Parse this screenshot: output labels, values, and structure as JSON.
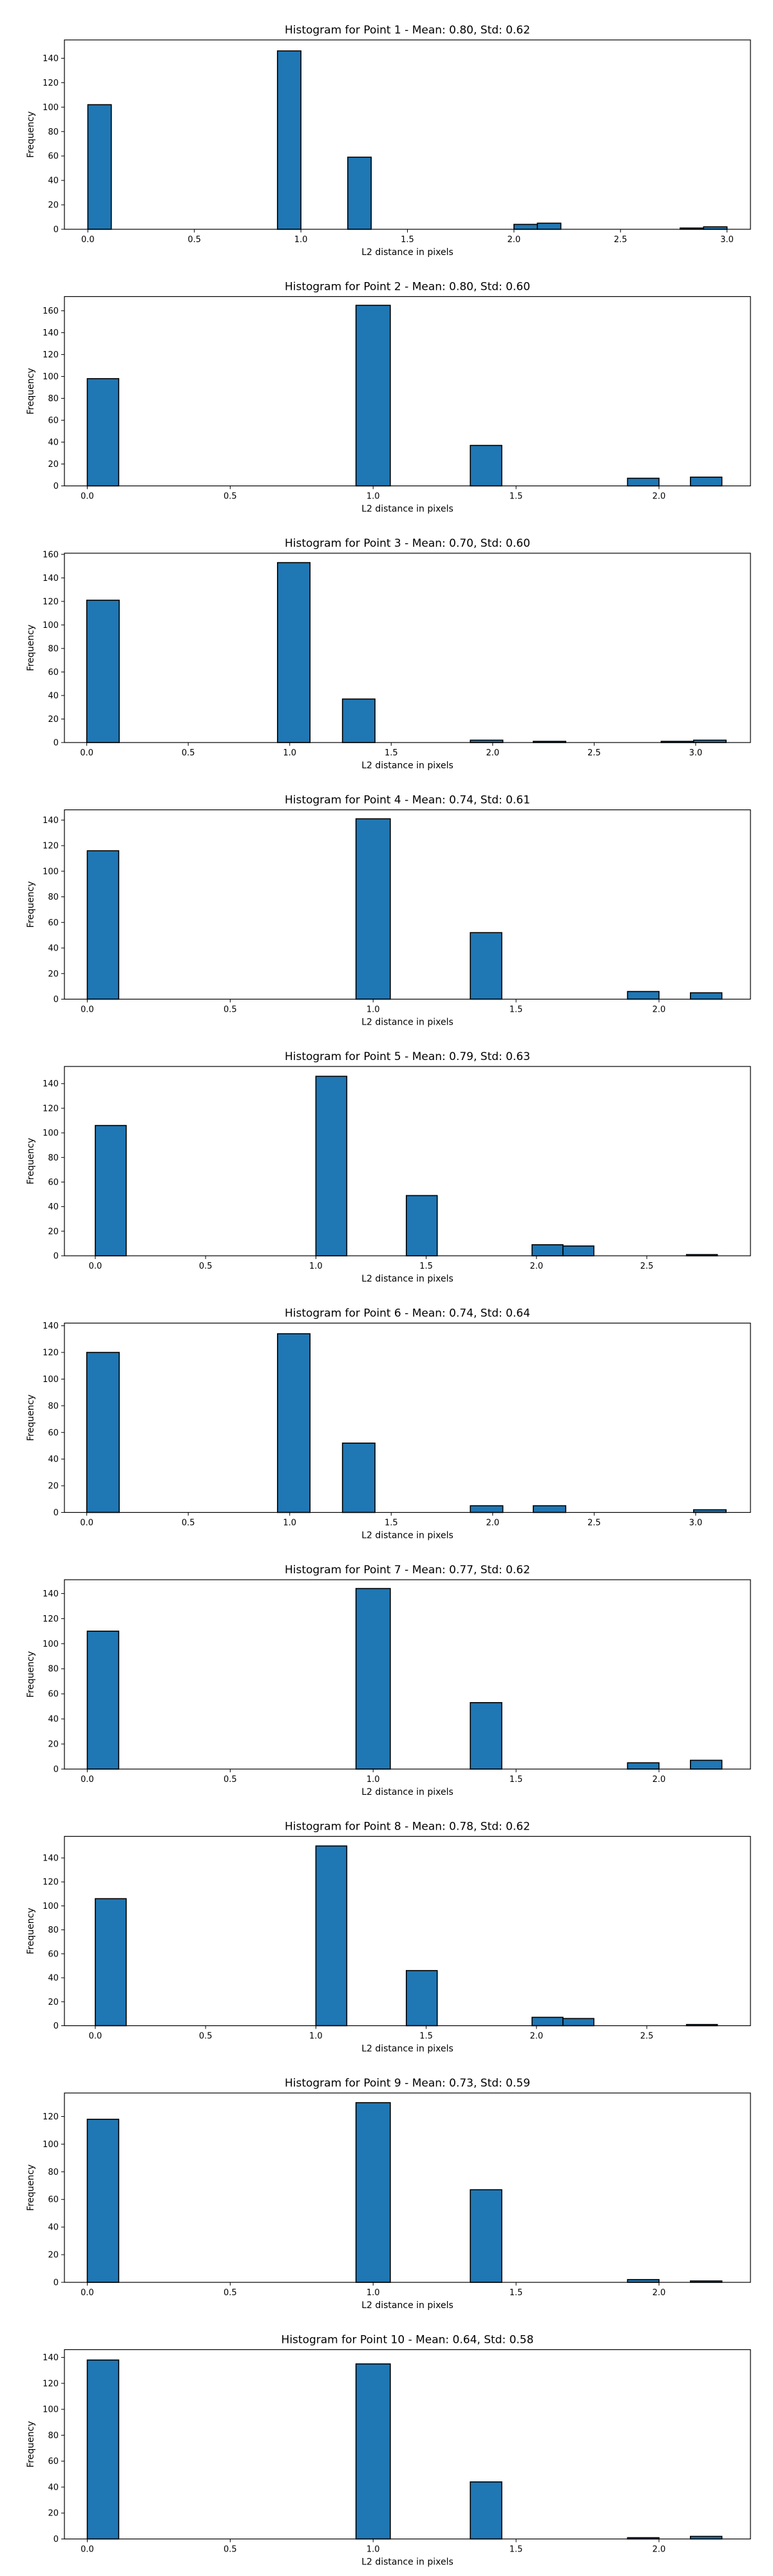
{
  "style": {
    "bar_color": "#1f77b4",
    "edge_color": "#000000"
  },
  "chart_data": [
    {
      "type": "bar",
      "title": "Histogram for Point 1 - Mean: 0.80, Std: 0.62",
      "xlabel": "L2 distance in pixels",
      "ylabel": "Frequency",
      "xlim": [
        -0.11,
        3.11
      ],
      "ylim": [
        0,
        155
      ],
      "xticks": [
        0.0,
        0.5,
        1.0,
        1.5,
        2.0,
        2.5,
        3.0
      ],
      "xtick_labels": [
        "0.0",
        "0.5",
        "1.0",
        "1.5",
        "2.0",
        "2.5",
        "3.0"
      ],
      "yticks": [
        0,
        20,
        40,
        60,
        80,
        100,
        120,
        140
      ],
      "bins": [
        {
          "x0": 0.0,
          "x1": 0.11,
          "value": 102
        },
        {
          "x0": 0.89,
          "x1": 1.0,
          "value": 146
        },
        {
          "x0": 1.22,
          "x1": 1.33,
          "value": 59
        },
        {
          "x0": 2.0,
          "x1": 2.11,
          "value": 4
        },
        {
          "x0": 2.11,
          "x1": 2.22,
          "value": 5
        },
        {
          "x0": 2.78,
          "x1": 2.89,
          "value": 1
        },
        {
          "x0": 2.89,
          "x1": 3.0,
          "value": 2
        }
      ]
    },
    {
      "type": "bar",
      "title": "Histogram for Point 2 - Mean: 0.80, Std: 0.60",
      "xlabel": "L2 distance in pixels",
      "ylabel": "Frequency",
      "xlim": [
        -0.08,
        2.32
      ],
      "ylim": [
        0,
        173
      ],
      "xticks": [
        0.0,
        0.5,
        1.0,
        1.5,
        2.0
      ],
      "xtick_labels": [
        "0.0",
        "0.5",
        "1.0",
        "1.5",
        "2.0"
      ],
      "yticks": [
        0,
        20,
        40,
        60,
        80,
        100,
        120,
        140,
        160
      ],
      "bins": [
        {
          "x0": 0.0,
          "x1": 0.11,
          "value": 98
        },
        {
          "x0": 0.94,
          "x1": 1.06,
          "value": 165
        },
        {
          "x0": 1.34,
          "x1": 1.45,
          "value": 37
        },
        {
          "x0": 1.89,
          "x1": 2.0,
          "value": 7
        },
        {
          "x0": 2.11,
          "x1": 2.22,
          "value": 8
        }
      ]
    },
    {
      "type": "bar",
      "title": "Histogram for Point 3 - Mean: 0.70, Std: 0.60",
      "xlabel": "L2 distance in pixels",
      "ylabel": "Frequency",
      "xlim": [
        -0.11,
        3.27
      ],
      "ylim": [
        0,
        161
      ],
      "xticks": [
        0.0,
        0.5,
        1.0,
        1.5,
        2.0,
        2.5,
        3.0
      ],
      "xtick_labels": [
        "0.0",
        "0.5",
        "1.0",
        "1.5",
        "2.0",
        "2.5",
        "3.0"
      ],
      "yticks": [
        0,
        20,
        40,
        60,
        80,
        100,
        120,
        140,
        160
      ],
      "bins": [
        {
          "x0": 0.0,
          "x1": 0.16,
          "value": 121
        },
        {
          "x0": 0.94,
          "x1": 1.1,
          "value": 153
        },
        {
          "x0": 1.26,
          "x1": 1.42,
          "value": 37
        },
        {
          "x0": 1.89,
          "x1": 2.05,
          "value": 2
        },
        {
          "x0": 2.2,
          "x1": 2.36,
          "value": 1
        },
        {
          "x0": 2.83,
          "x1": 2.99,
          "value": 1
        },
        {
          "x0": 2.99,
          "x1": 3.15,
          "value": 2
        }
      ]
    },
    {
      "type": "bar",
      "title": "Histogram for Point 4 - Mean: 0.74, Std: 0.61",
      "xlabel": "L2 distance in pixels",
      "ylabel": "Frequency",
      "xlim": [
        -0.08,
        2.32
      ],
      "ylim": [
        0,
        148
      ],
      "xticks": [
        0.0,
        0.5,
        1.0,
        1.5,
        2.0
      ],
      "xtick_labels": [
        "0.0",
        "0.5",
        "1.0",
        "1.5",
        "2.0"
      ],
      "yticks": [
        0,
        20,
        40,
        60,
        80,
        100,
        120,
        140
      ],
      "bins": [
        {
          "x0": 0.0,
          "x1": 0.11,
          "value": 116
        },
        {
          "x0": 0.94,
          "x1": 1.06,
          "value": 141
        },
        {
          "x0": 1.34,
          "x1": 1.45,
          "value": 52
        },
        {
          "x0": 1.89,
          "x1": 2.0,
          "value": 6
        },
        {
          "x0": 2.11,
          "x1": 2.22,
          "value": 5
        }
      ]
    },
    {
      "type": "bar",
      "title": "Histogram for Point 5 - Mean: 0.79, Std: 0.63",
      "xlabel": "L2 distance in pixels",
      "ylabel": "Frequency",
      "xlim": [
        -0.14,
        2.97
      ],
      "ylim": [
        0,
        154
      ],
      "xticks": [
        0.0,
        0.5,
        1.0,
        1.5,
        2.0,
        2.5
      ],
      "xtick_labels": [
        "0.0",
        "0.5",
        "1.0",
        "1.5",
        "2.0",
        "2.5"
      ],
      "yticks": [
        0,
        20,
        40,
        60,
        80,
        100,
        120,
        140
      ],
      "bins": [
        {
          "x0": 0.0,
          "x1": 0.14,
          "value": 106
        },
        {
          "x0": 1.0,
          "x1": 1.14,
          "value": 146
        },
        {
          "x0": 1.41,
          "x1": 1.55,
          "value": 49
        },
        {
          "x0": 1.98,
          "x1": 2.12,
          "value": 9
        },
        {
          "x0": 2.12,
          "x1": 2.26,
          "value": 8
        },
        {
          "x0": 2.68,
          "x1": 2.82,
          "value": 1
        }
      ]
    },
    {
      "type": "bar",
      "title": "Histogram for Point 6 - Mean: 0.74, Std: 0.64",
      "xlabel": "L2 distance in pixels",
      "ylabel": "Frequency",
      "xlim": [
        -0.11,
        3.27
      ],
      "ylim": [
        0,
        142
      ],
      "xticks": [
        0.0,
        0.5,
        1.0,
        1.5,
        2.0,
        2.5,
        3.0
      ],
      "xtick_labels": [
        "0.0",
        "0.5",
        "1.0",
        "1.5",
        "2.0",
        "2.5",
        "3.0"
      ],
      "yticks": [
        0,
        20,
        40,
        60,
        80,
        100,
        120,
        140
      ],
      "bins": [
        {
          "x0": 0.0,
          "x1": 0.16,
          "value": 120
        },
        {
          "x0": 0.94,
          "x1": 1.1,
          "value": 134
        },
        {
          "x0": 1.26,
          "x1": 1.42,
          "value": 52
        },
        {
          "x0": 1.89,
          "x1": 2.05,
          "value": 5
        },
        {
          "x0": 2.2,
          "x1": 2.36,
          "value": 5
        },
        {
          "x0": 2.99,
          "x1": 3.15,
          "value": 2
        }
      ]
    },
    {
      "type": "bar",
      "title": "Histogram for Point 7 - Mean: 0.77, Std: 0.62",
      "xlabel": "L2 distance in pixels",
      "ylabel": "Frequency",
      "xlim": [
        -0.08,
        2.32
      ],
      "ylim": [
        0,
        151
      ],
      "xticks": [
        0.0,
        0.5,
        1.0,
        1.5,
        2.0
      ],
      "xtick_labels": [
        "0.0",
        "0.5",
        "1.0",
        "1.5",
        "2.0"
      ],
      "yticks": [
        0,
        20,
        40,
        60,
        80,
        100,
        120,
        140
      ],
      "bins": [
        {
          "x0": 0.0,
          "x1": 0.11,
          "value": 110
        },
        {
          "x0": 0.94,
          "x1": 1.06,
          "value": 144
        },
        {
          "x0": 1.34,
          "x1": 1.45,
          "value": 53
        },
        {
          "x0": 1.89,
          "x1": 2.0,
          "value": 5
        },
        {
          "x0": 2.11,
          "x1": 2.22,
          "value": 7
        }
      ]
    },
    {
      "type": "bar",
      "title": "Histogram for Point 8 - Mean: 0.78, Std: 0.62",
      "xlabel": "L2 distance in pixels",
      "ylabel": "Frequency",
      "xlim": [
        -0.14,
        2.97
      ],
      "ylim": [
        0,
        158
      ],
      "xticks": [
        0.0,
        0.5,
        1.0,
        1.5,
        2.0,
        2.5
      ],
      "xtick_labels": [
        "0.0",
        "0.5",
        "1.0",
        "1.5",
        "2.0",
        "2.5"
      ],
      "yticks": [
        0,
        20,
        40,
        60,
        80,
        100,
        120,
        140
      ],
      "bins": [
        {
          "x0": 0.0,
          "x1": 0.14,
          "value": 106
        },
        {
          "x0": 1.0,
          "x1": 1.14,
          "value": 150
        },
        {
          "x0": 1.41,
          "x1": 1.55,
          "value": 46
        },
        {
          "x0": 1.98,
          "x1": 2.12,
          "value": 7
        },
        {
          "x0": 2.12,
          "x1": 2.26,
          "value": 6
        },
        {
          "x0": 2.68,
          "x1": 2.82,
          "value": 1
        }
      ]
    },
    {
      "type": "bar",
      "title": "Histogram for Point 9 - Mean: 0.73, Std: 0.59",
      "xlabel": "L2 distance in pixels",
      "ylabel": "Frequency",
      "xlim": [
        -0.08,
        2.32
      ],
      "ylim": [
        0,
        137
      ],
      "xticks": [
        0.0,
        0.5,
        1.0,
        1.5,
        2.0
      ],
      "xtick_labels": [
        "0.0",
        "0.5",
        "1.0",
        "1.5",
        "2.0"
      ],
      "yticks": [
        0,
        20,
        40,
        60,
        80,
        100,
        120
      ],
      "bins": [
        {
          "x0": 0.0,
          "x1": 0.11,
          "value": 118
        },
        {
          "x0": 0.94,
          "x1": 1.06,
          "value": 130
        },
        {
          "x0": 1.34,
          "x1": 1.45,
          "value": 67
        },
        {
          "x0": 1.89,
          "x1": 2.0,
          "value": 2
        },
        {
          "x0": 2.11,
          "x1": 2.22,
          "value": 1
        }
      ]
    },
    {
      "type": "bar",
      "title": "Histogram for Point 10 - Mean: 0.64, Std: 0.58",
      "xlabel": "L2 distance in pixels",
      "ylabel": "Frequency",
      "xlim": [
        -0.08,
        2.32
      ],
      "ylim": [
        0,
        146
      ],
      "xticks": [
        0.0,
        0.5,
        1.0,
        1.5,
        2.0
      ],
      "xtick_labels": [
        "0.0",
        "0.5",
        "1.0",
        "1.5",
        "2.0"
      ],
      "yticks": [
        0,
        20,
        40,
        60,
        80,
        100,
        120,
        140
      ],
      "bins": [
        {
          "x0": 0.0,
          "x1": 0.11,
          "value": 138
        },
        {
          "x0": 0.94,
          "x1": 1.06,
          "value": 135
        },
        {
          "x0": 1.34,
          "x1": 1.45,
          "value": 44
        },
        {
          "x0": 1.89,
          "x1": 2.0,
          "value": 1
        },
        {
          "x0": 2.11,
          "x1": 2.22,
          "value": 2
        }
      ]
    }
  ]
}
